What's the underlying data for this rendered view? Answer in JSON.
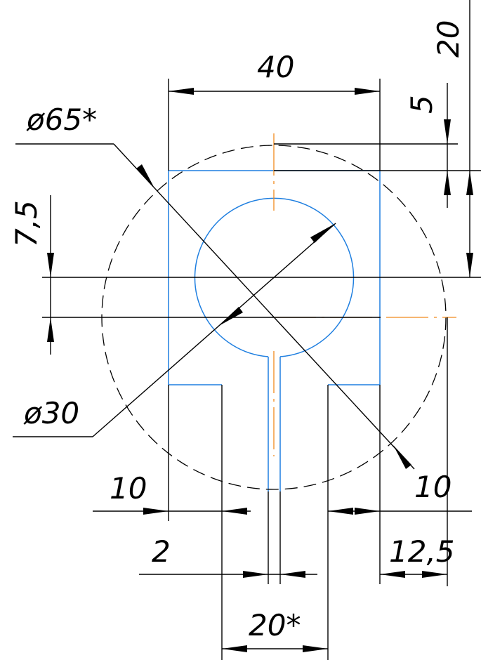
{
  "dimensions": {
    "width_top": "40",
    "dia_outer": "ø65*",
    "dia_inner": "ø30",
    "offset_center": "7,5",
    "top_gap": "5",
    "height_total": "20",
    "slot_left": "10",
    "slot_right": "10",
    "gap_slot": "2",
    "leg_right": "12,5",
    "width_bottom": "20*"
  }
}
